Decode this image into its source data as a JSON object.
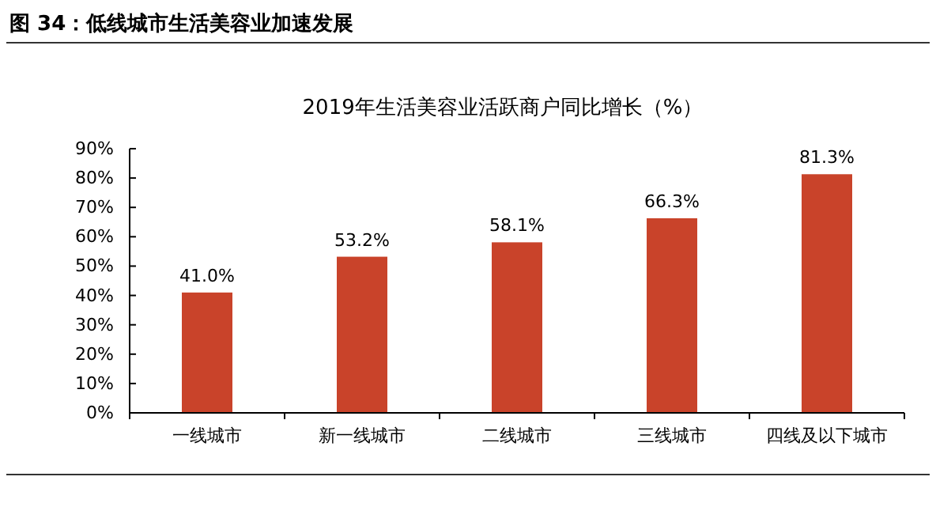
{
  "chart_data": {
    "type": "bar",
    "title": "图 34：低线城市生活美容业加速发展",
    "subtitle": "2019年生活美容业活跃商户同比增长（%）",
    "categories": [
      "一线城市",
      "新一线城市",
      "二线城市",
      "三线城市",
      "四线及以下城市"
    ],
    "values": [
      41.0,
      53.2,
      58.1,
      66.3,
      81.3
    ],
    "value_labels": [
      "41.0%",
      "53.2%",
      "58.1%",
      "66.3%",
      "81.3%"
    ],
    "color": "#c9432a",
    "ylim": [
      0,
      90
    ],
    "yticks": [
      {
        "value": 0,
        "label": "0%"
      },
      {
        "value": 10,
        "label": "10%"
      },
      {
        "value": 20,
        "label": "20%"
      },
      {
        "value": 30,
        "label": "30%"
      },
      {
        "value": 40,
        "label": "40%"
      },
      {
        "value": 50,
        "label": "50%"
      },
      {
        "value": 60,
        "label": "60%"
      },
      {
        "value": 70,
        "label": "70%"
      },
      {
        "value": 80,
        "label": "80%"
      },
      {
        "value": 90,
        "label": "90%"
      }
    ],
    "grid": false
  }
}
